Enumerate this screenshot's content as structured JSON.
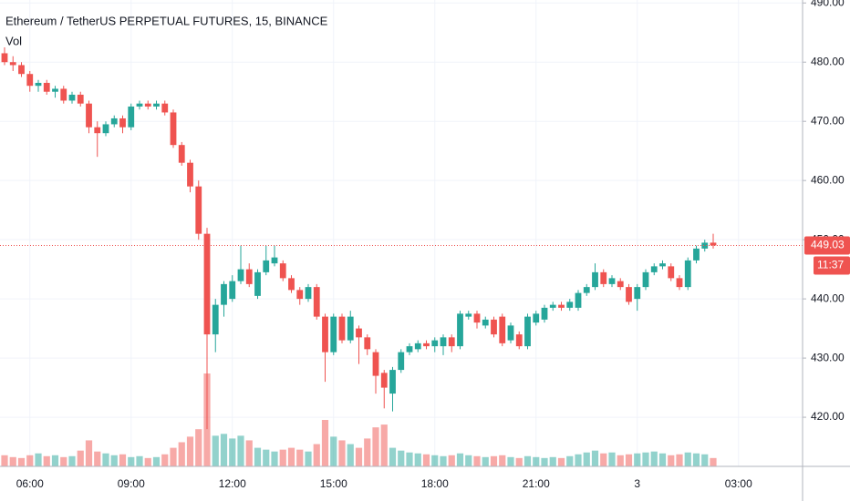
{
  "chart_data": {
    "type": "candlestick",
    "title": "Ethereum / TetherUS PERPETUAL FUTURES, 15, BINANCE",
    "volume_title": "Vol",
    "categories": [
      null,
      null,
      null,
      "06:00",
      null,
      null,
      null,
      null,
      null,
      null,
      null,
      null,
      null,
      null,
      null,
      "09:00",
      null,
      null,
      null,
      null,
      null,
      null,
      null,
      null,
      null,
      null,
      null,
      "12:00",
      null,
      null,
      null,
      null,
      null,
      null,
      null,
      null,
      null,
      null,
      null,
      "15:00",
      null,
      null,
      null,
      null,
      null,
      null,
      null,
      null,
      null,
      null,
      null,
      "18:00",
      null,
      null,
      null,
      null,
      null,
      null,
      null,
      null,
      null,
      null,
      null,
      "21:00",
      null,
      null,
      null,
      null,
      null,
      null,
      null,
      null,
      null,
      null,
      null,
      "3",
      null,
      null,
      null,
      null,
      null,
      null,
      null,
      null,
      null,
      null,
      null,
      "03:00",
      null,
      null,
      null,
      null,
      null,
      null,
      null
    ],
    "open": [
      481.5,
      480,
      479.5,
      478,
      476,
      476.5,
      475,
      475.5,
      473.5,
      474.5,
      473,
      469,
      468,
      469.5,
      470.5,
      469,
      472.5,
      473,
      472.5,
      473,
      471.5,
      466,
      463,
      459,
      451,
      434,
      439,
      440,
      443,
      445,
      440.5,
      444.5,
      446,
      446,
      443.5,
      441.5,
      440,
      442,
      437,
      431,
      437,
      433,
      435,
      433.5,
      431,
      427.5,
      424,
      428,
      431,
      431.5,
      432.5,
      432,
      432,
      433.5,
      432,
      437,
      437.5,
      435.5,
      436.5,
      437,
      433,
      434,
      432,
      436,
      436.5,
      438.5,
      439,
      438.5,
      438.5,
      441,
      442,
      444.5,
      442.5,
      443,
      442,
      440,
      442,
      444.5,
      445.5,
      445.5,
      443.5,
      442,
      446.5,
      448.5,
      449.5,
      null,
      null,
      null,
      null,
      null,
      null,
      null,
      null,
      null,
      null
    ],
    "high": [
      482.5,
      481,
      480,
      478.5,
      477,
      477,
      476,
      476,
      475,
      475,
      473.5,
      470,
      470,
      471,
      471,
      473,
      473.5,
      473.5,
      473.5,
      473.5,
      472,
      466.5,
      463.5,
      460,
      452,
      440,
      443,
      444,
      449,
      446,
      445,
      449,
      449,
      446.5,
      444,
      442,
      442.5,
      442.5,
      437.5,
      437.5,
      437.5,
      438,
      435.5,
      434,
      431.5,
      428,
      428.5,
      431.5,
      432.5,
      433,
      433,
      433.5,
      434,
      434,
      438,
      438,
      438,
      437,
      437,
      437.5,
      436,
      434.5,
      437.5,
      438,
      439,
      439.5,
      439.5,
      440,
      441.5,
      442.5,
      446,
      445,
      444,
      443.5,
      442.5,
      442.5,
      445,
      446,
      446.5,
      446,
      444,
      447,
      449,
      450,
      451,
      null,
      null,
      null,
      null,
      null,
      null,
      null,
      null,
      null,
      null
    ],
    "low": [
      479.5,
      478.5,
      477.5,
      475,
      475,
      474.5,
      474,
      473,
      473,
      472.5,
      468,
      464,
      467.5,
      469,
      468,
      468.5,
      472,
      472,
      472,
      471,
      465.5,
      462.5,
      458,
      450,
      418,
      431,
      437,
      439.5,
      442.5,
      442,
      440,
      444,
      445.5,
      443,
      441,
      439,
      439.5,
      436.5,
      426,
      430.5,
      432.5,
      432.5,
      429,
      430.5,
      424,
      421.5,
      421,
      427.5,
      430.5,
      431,
      431.5,
      431,
      430.5,
      431,
      431.5,
      436.5,
      435,
      435,
      433.5,
      432,
      432.5,
      431.5,
      431.5,
      435.5,
      436,
      438,
      438,
      438,
      438,
      440.5,
      441.5,
      442,
      442,
      441.5,
      439,
      438,
      441.5,
      444,
      445,
      443,
      441.5,
      441.5,
      446,
      448,
      448.5,
      null,
      null,
      null,
      null,
      null,
      null,
      null,
      null,
      null,
      null
    ],
    "close": [
      480,
      479.5,
      478,
      476,
      476.5,
      475,
      475.5,
      473.5,
      474.5,
      473,
      469,
      468,
      469.5,
      470.5,
      469,
      472.5,
      473,
      472.5,
      473,
      471.5,
      466,
      463,
      459,
      451,
      434,
      439,
      442.5,
      443,
      445,
      442.5,
      444.5,
      446.5,
      447,
      443.5,
      441.5,
      440,
      442,
      437,
      431,
      437,
      433,
      437,
      433.5,
      431.5,
      427,
      425,
      428,
      431,
      432,
      432.5,
      432,
      433,
      433.5,
      432,
      437.5,
      437.5,
      436,
      436.5,
      434,
      432.5,
      435.5,
      432,
      437,
      437.5,
      438.5,
      439,
      438.5,
      439.5,
      441,
      442,
      444.5,
      442.5,
      443.5,
      442,
      439.5,
      442,
      444.5,
      445.5,
      446,
      443.5,
      442,
      446.5,
      448.5,
      449.5,
      449.03,
      null,
      null,
      null,
      null,
      null,
      null,
      null,
      null,
      null,
      null
    ],
    "volume": [
      12,
      10,
      9,
      12,
      14,
      11,
      12,
      10,
      11,
      17,
      28,
      16,
      14,
      12,
      13,
      10,
      11,
      9,
      10,
      13,
      20,
      26,
      32,
      40,
      100,
      33,
      35,
      30,
      33,
      28,
      20,
      18,
      16,
      18,
      20,
      18,
      16,
      24,
      50,
      32,
      28,
      24,
      20,
      30,
      42,
      45,
      20,
      17,
      15,
      14,
      13,
      12,
      11,
      12,
      14,
      12,
      11,
      10,
      11,
      12,
      10,
      9,
      11,
      10,
      9,
      10,
      9,
      11,
      13,
      15,
      17,
      14,
      15,
      12,
      13,
      14,
      15,
      16,
      14,
      12,
      13,
      15,
      14,
      13,
      9,
      null,
      null,
      null,
      null,
      null,
      null,
      null,
      null,
      null,
      null
    ],
    "up_color": "#26a69a",
    "down_color": "#ef5350",
    "ylim": [
      411.7,
      490.5
    ],
    "volume_lim": [
      0,
      100
    ],
    "yticks": [
      {
        "value": 420,
        "label": "420.00"
      },
      {
        "value": 430,
        "label": "430.00"
      },
      {
        "value": 440,
        "label": "440.00"
      },
      {
        "value": 450,
        "label": "450.00"
      },
      {
        "value": 460,
        "label": "460.00"
      },
      {
        "value": 470,
        "label": "470.00"
      },
      {
        "value": 480,
        "label": "480.00"
      },
      {
        "value": 490,
        "label": "490.00"
      }
    ],
    "last_price": 449.03,
    "countdown": "11:37",
    "grid": true
  }
}
